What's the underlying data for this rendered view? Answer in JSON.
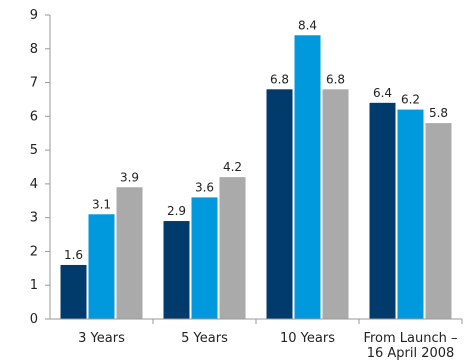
{
  "chart_data": {
    "type": "bar",
    "categories": [
      "3 Years",
      "5 Years",
      "10 Years",
      "From Launch –\n16 April 2008"
    ],
    "series": [
      {
        "values": [
          1.6,
          2.9,
          6.8,
          6.4
        ],
        "color": "#003b6b"
      },
      {
        "values": [
          3.1,
          3.6,
          8.4,
          6.2
        ],
        "color": "#0099dd"
      },
      {
        "values": [
          3.9,
          4.2,
          6.8,
          5.8
        ],
        "color": "#aaaaaa"
      }
    ],
    "ylim": [
      0,
      9
    ],
    "yticks": [
      0,
      1,
      2,
      3,
      4,
      5,
      6,
      7,
      8,
      9
    ],
    "grid": false,
    "legend": "none",
    "title": "",
    "xlabel": "",
    "ylabel": ""
  }
}
